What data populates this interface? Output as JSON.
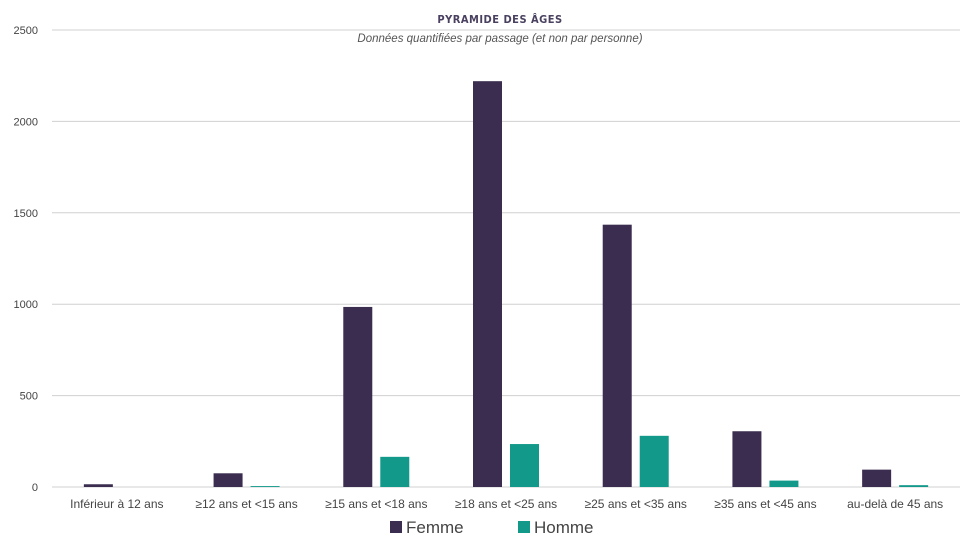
{
  "chart_data": {
    "type": "bar",
    "title": "PYRAMIDE DES ÂGES",
    "subtitle": "Données quantifiées par passage (et non par personne)",
    "categories": [
      "Inférieur à 12 ans",
      "≥12 ans et <15 ans",
      "≥15 ans et <18 ans",
      "≥18 ans et <25 ans",
      "≥25 ans et <35 ans",
      "≥35 ans et <45 ans",
      "au-delà de 45 ans"
    ],
    "series": [
      {
        "name": "Femme",
        "color": "#3b2d4f",
        "values": [
          15,
          75,
          985,
          2220,
          1435,
          305,
          95
        ]
      },
      {
        "name": "Homme",
        "color": "#13998a",
        "values": [
          0,
          5,
          165,
          235,
          280,
          35,
          10
        ]
      }
    ],
    "yticks": [
      "0",
      "500",
      "1000",
      "1500",
      "2000",
      "2500"
    ],
    "ylim": [
      0,
      2500
    ],
    "grid": true,
    "legend_position": "bottom"
  }
}
